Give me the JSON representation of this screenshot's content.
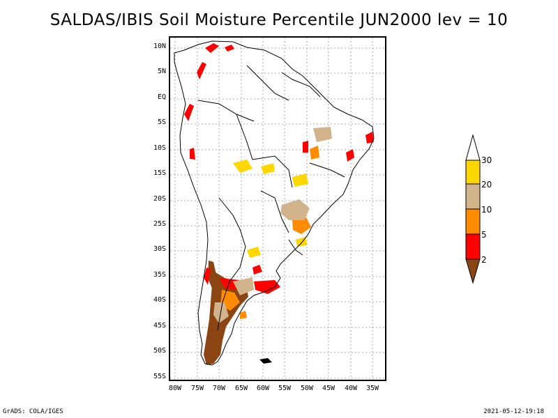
{
  "title": "SALDAS/IBIS Soil Moisture Percentile JUN2000 lev = 10",
  "map": {
    "lat_labels": [
      "10N",
      "5N",
      "EQ",
      "5S",
      "10S",
      "15S",
      "20S",
      "25S",
      "30S",
      "35S",
      "40S",
      "45S",
      "50S",
      "55S"
    ],
    "lon_labels": [
      "80W",
      "75W",
      "70W",
      "65W",
      "60W",
      "55W",
      "50W",
      "45W",
      "40W",
      "35W"
    ]
  },
  "legend": {
    "labels": [
      "30",
      "20",
      "10",
      "5",
      "2"
    ],
    "colors": {
      "lt2": "#8b4513",
      "2to5": "#ff0000",
      "5to10": "#ff8c00",
      "10to20": "#d2b48c",
      "20to30": "#ffd700",
      "gt30": "#ffffff"
    }
  },
  "footer": {
    "left": "GrADS: COLA/IGES",
    "right": "2021-05-12-19:18"
  }
}
